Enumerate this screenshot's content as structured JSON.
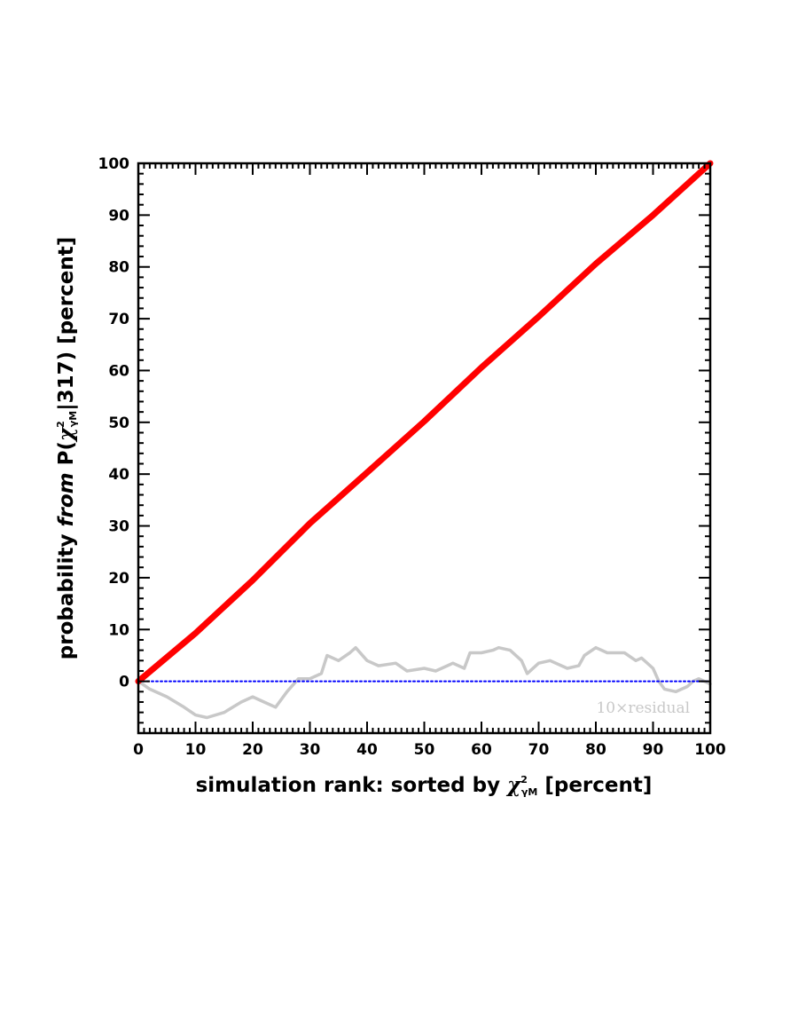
{
  "chart_data": {
    "type": "line",
    "xlabel": {
      "prefix": "simulation rank: sorted by ",
      "chi": "χ",
      "sup": "2",
      "sub": "γM",
      "suffix": " [percent]"
    },
    "ylabel": {
      "prefix": "probability ",
      "from": "from",
      "mid": " P(",
      "chi": "χ",
      "sup": "2",
      "sub": "γM",
      "suffix": "|317) [percent]"
    },
    "xlim": [
      0,
      100
    ],
    "ylim": [
      -10,
      100
    ],
    "xticks": [
      0,
      10,
      20,
      30,
      40,
      50,
      60,
      70,
      80,
      90,
      100
    ],
    "yticks": [
      0,
      10,
      20,
      30,
      40,
      50,
      60,
      70,
      80,
      90,
      100
    ],
    "grid": false,
    "annotations": [
      {
        "text": "10×residual",
        "x": 98,
        "y": -5
      }
    ],
    "series": [
      {
        "color": "#ff0000",
        "x": [
          0,
          10,
          20,
          30,
          40,
          50,
          60,
          70,
          80,
          90,
          100
        ],
        "y": [
          0,
          9.3,
          19.5,
          30.5,
          40.3,
          50.2,
          60.6,
          70.4,
          80.6,
          90.0,
          100
        ]
      },
      {
        "color": "#c8c8c8",
        "x": [
          0,
          2,
          5,
          8,
          10,
          12,
          15,
          18,
          20,
          22,
          24,
          26,
          28,
          30,
          32,
          33,
          35,
          37,
          38,
          40,
          42,
          45,
          47,
          50,
          52,
          55,
          57,
          58,
          60,
          62,
          63,
          65,
          67,
          68,
          70,
          72,
          75,
          77,
          78,
          80,
          82,
          85,
          87,
          88,
          90,
          91,
          92,
          94,
          96,
          97,
          98,
          100
        ],
        "y": [
          0,
          -1.5,
          -3,
          -5,
          -6.5,
          -7,
          -6,
          -4,
          -3,
          -4,
          -5,
          -2,
          0.5,
          0.5,
          1.5,
          5,
          4,
          5.5,
          6.5,
          4,
          3,
          3.5,
          2,
          2.5,
          2,
          3.5,
          2.5,
          5.5,
          5.5,
          6,
          6.5,
          6,
          4,
          1.5,
          3.5,
          4,
          2.5,
          3,
          5,
          6.5,
          5.5,
          5.5,
          4,
          4.5,
          2.5,
          0,
          -1.5,
          -2,
          -1,
          0,
          0.5,
          -0.5
        ]
      },
      {
        "color": "#0000ff",
        "x": [
          0,
          100
        ],
        "y": [
          0,
          0
        ]
      }
    ]
  }
}
